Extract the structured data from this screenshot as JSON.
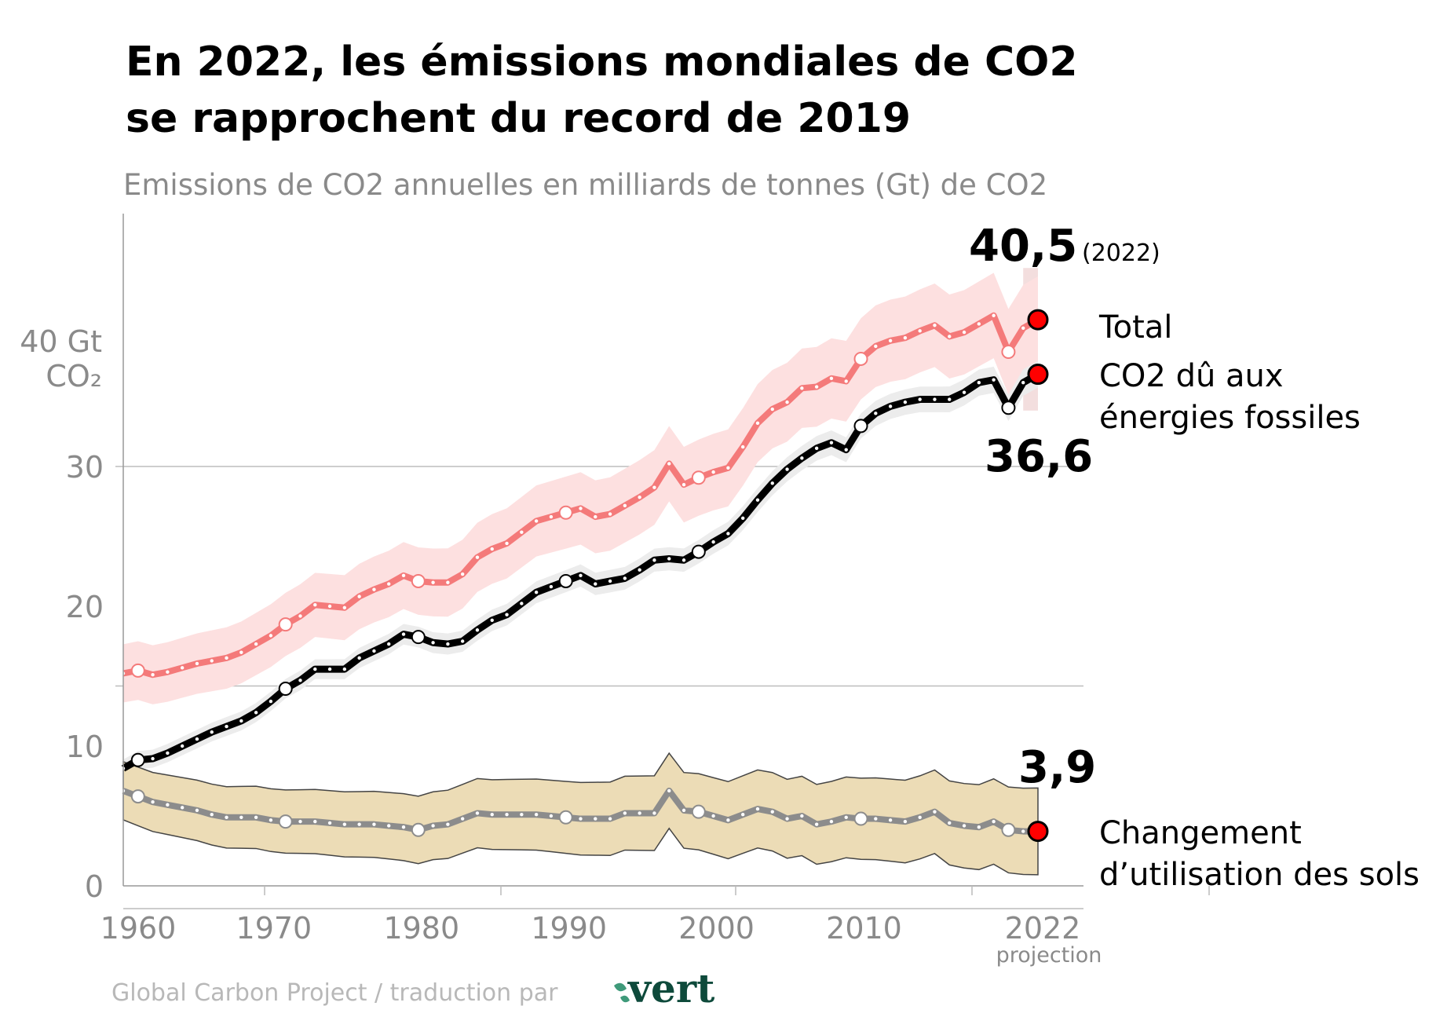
{
  "title_lines": [
    "En 2022, les émissions mondiales de CO2",
    "se rapprochent du record de 2019"
  ],
  "subtitle": "Emissions de CO2 annuelles en milliards de tonnes (Gt) de CO2",
  "footer": {
    "source": "Global Carbon Project / traduction par",
    "logo_text": "vert",
    "logo_color": "#0e4a3b"
  },
  "chart_data": {
    "type": "line",
    "title": "En 2022, les émissions mondiales de CO2 se rapprochent du record de 2019",
    "ylabel_lines": [
      "40 Gt",
      "CO₂"
    ],
    "ylim": [
      0,
      48
    ],
    "xlim": [
      1960,
      2022
    ],
    "y_ticks": [
      {
        "value": 0,
        "label": "0"
      },
      {
        "value": 10,
        "label": "10"
      },
      {
        "value": 20,
        "label": "20"
      },
      {
        "value": 30,
        "label": "30"
      }
    ],
    "x_ticks": [
      {
        "value": 1960,
        "label": "1960"
      },
      {
        "value": 1970,
        "label": "1970"
      },
      {
        "value": 1980,
        "label": "1980"
      },
      {
        "value": 1990,
        "label": "1990"
      },
      {
        "value": 2000,
        "label": "2000"
      },
      {
        "value": 2010,
        "label": "2010"
      },
      {
        "value": 2022,
        "label": "2022"
      }
    ],
    "x_note": "projection",
    "grid": true,
    "x": [
      1960,
      1961,
      1962,
      1963,
      1964,
      1965,
      1966,
      1967,
      1968,
      1969,
      1970,
      1971,
      1972,
      1973,
      1974,
      1975,
      1976,
      1977,
      1978,
      1979,
      1980,
      1981,
      1982,
      1983,
      1984,
      1985,
      1986,
      1987,
      1988,
      1989,
      1990,
      1991,
      1992,
      1993,
      1994,
      1995,
      1996,
      1997,
      1998,
      1999,
      2000,
      2001,
      2002,
      2003,
      2004,
      2005,
      2006,
      2007,
      2008,
      2009,
      2010,
      2011,
      2012,
      2013,
      2014,
      2015,
      2016,
      2017,
      2018,
      2019,
      2020,
      2021,
      2022
    ],
    "series": [
      {
        "name": "Total",
        "color": "#f47a7a",
        "band_color": "#fde0e0",
        "uncertainty": 2.6,
        "values": [
          15.2,
          15.4,
          15.1,
          15.3,
          15.6,
          15.9,
          16.1,
          16.3,
          16.7,
          17.3,
          17.9,
          18.7,
          19.3,
          20.1,
          20.0,
          19.9,
          20.7,
          21.2,
          21.6,
          22.2,
          21.8,
          21.7,
          21.7,
          22.3,
          23.5,
          24.1,
          24.5,
          25.3,
          26.1,
          26.4,
          26.7,
          27.0,
          26.4,
          26.6,
          27.2,
          27.8,
          28.5,
          30.2,
          28.7,
          29.2,
          29.6,
          29.9,
          31.4,
          33.1,
          34.1,
          34.6,
          35.6,
          35.7,
          36.3,
          36.1,
          37.7,
          38.6,
          39.0,
          39.2,
          39.7,
          40.1,
          39.3,
          39.6,
          40.2,
          40.8,
          38.2,
          39.9,
          40.5
        ],
        "end_label": "40,5",
        "end_note": "(2022)",
        "legend": [
          "Total"
        ]
      },
      {
        "name": "CO2 dû aux énergies fossiles",
        "color": "#000000",
        "band_color": "#ececec",
        "uncertainty": 0.8,
        "values": [
          8.4,
          9.0,
          9.1,
          9.5,
          10.0,
          10.5,
          11.0,
          11.4,
          11.8,
          12.4,
          13.2,
          14.1,
          14.7,
          15.5,
          15.5,
          15.5,
          16.3,
          16.8,
          17.3,
          18.0,
          17.8,
          17.4,
          17.3,
          17.5,
          18.3,
          19.0,
          19.4,
          20.2,
          21.0,
          21.4,
          21.8,
          22.2,
          21.6,
          21.8,
          22.0,
          22.6,
          23.3,
          23.4,
          23.3,
          23.9,
          24.6,
          25.2,
          26.3,
          27.6,
          28.8,
          29.8,
          30.6,
          31.3,
          31.7,
          31.2,
          32.9,
          33.8,
          34.3,
          34.6,
          34.8,
          34.8,
          34.8,
          35.3,
          36.0,
          36.2,
          34.2,
          36.0,
          36.6
        ],
        "end_label": "36,6",
        "legend": [
          "CO2 dû aux",
          "énergies fossiles"
        ]
      },
      {
        "name": "Changement d’utilisation des sols",
        "color": "#8c8c8c",
        "band_color": "#ecdcb6",
        "uncertainty": 2.6,
        "values": [
          6.8,
          6.4,
          6.0,
          5.8,
          5.6,
          5.4,
          5.1,
          4.9,
          4.9,
          4.9,
          4.7,
          4.6,
          4.6,
          4.6,
          4.5,
          4.4,
          4.4,
          4.4,
          4.3,
          4.2,
          4.0,
          4.3,
          4.4,
          4.8,
          5.2,
          5.1,
          5.1,
          5.1,
          5.1,
          5.0,
          4.9,
          4.8,
          4.8,
          4.8,
          5.2,
          5.2,
          5.2,
          6.8,
          5.4,
          5.3,
          5.0,
          4.7,
          5.1,
          5.5,
          5.3,
          4.8,
          5.0,
          4.4,
          4.6,
          4.9,
          4.8,
          4.8,
          4.7,
          4.6,
          4.9,
          5.3,
          4.5,
          4.3,
          4.2,
          4.6,
          4.0,
          3.9,
          3.9
        ],
        "end_label": "3,9",
        "legend": [
          "Changement",
          "d’utilisation des sols"
        ]
      }
    ],
    "highlight_years": [
      1961,
      1971,
      1980,
      1990,
      1999,
      2010,
      2020
    ],
    "end_marker_color": "#ff0000"
  }
}
